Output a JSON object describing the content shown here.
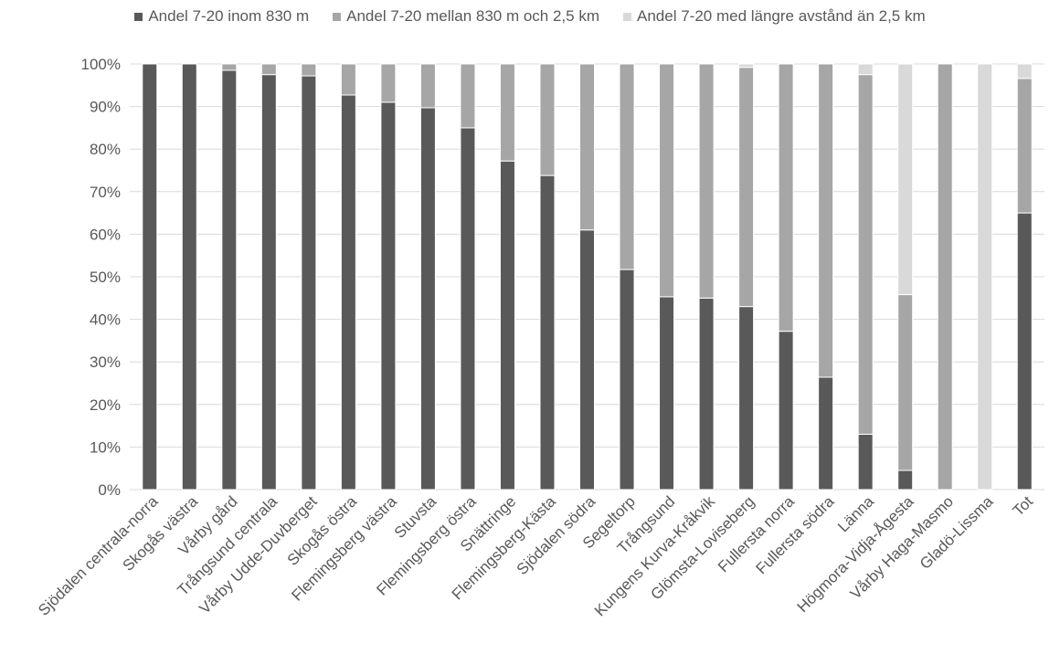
{
  "chart_data": {
    "type": "bar",
    "stacked": true,
    "title": "",
    "xlabel": "",
    "ylabel": "",
    "ylim": [
      0,
      100
    ],
    "y_ticks": [
      "0%",
      "10%",
      "20%",
      "30%",
      "40%",
      "50%",
      "60%",
      "70%",
      "80%",
      "90%",
      "100%"
    ],
    "grid": true,
    "legend_position": "top",
    "categories": [
      "Sjödalen centrala-norra",
      "Skogås västra",
      "Vårby gård",
      "Trångsund centrala",
      "Vårby Udde-Duvberget",
      "Skogås östra",
      "Flemingsberg västra",
      "Stuvsta",
      "Flemingsberg östra",
      "Snättringe",
      "Flemingsberg-Kästa",
      "Sjödalen södra",
      "Segeltorp",
      "Trångsund",
      "Kungens Kurva-Kråkvik",
      "Glömsta-Loviseberg",
      "Fullersta norra",
      "Fullersta södra",
      "Länna",
      "Högmora-Vidja-Ågesta",
      "Vårby Haga-Masmo",
      "Gladö-Lissma",
      "Tot"
    ],
    "series": [
      {
        "name": "Andel 7-20 inom 830 m",
        "color": "#595959",
        "values": [
          100,
          100,
          98.5,
          97.5,
          97.2,
          92.7,
          91,
          89.7,
          85,
          77.2,
          73.8,
          61,
          51.7,
          45.3,
          45,
          43,
          37.2,
          26.4,
          13,
          4.5,
          0,
          0,
          65
        ]
      },
      {
        "name": "Andel 7-20 mellan 830 m och 2,5 km",
        "color": "#a6a6a6",
        "values": [
          0,
          0,
          1.5,
          2.5,
          2.8,
          7.3,
          9,
          10.3,
          15,
          22.8,
          26.2,
          39,
          48.3,
          54.7,
          55,
          56.2,
          62.8,
          73.6,
          84.5,
          41.3,
          100,
          0,
          31.6
        ]
      },
      {
        "name": "Andel 7-20 med längre avstånd än 2,5 km",
        "color": "#d9d9d9",
        "values": [
          0,
          0,
          0,
          0,
          0,
          0,
          0,
          0,
          0,
          0,
          0,
          0,
          0,
          0,
          0,
          0.8,
          0,
          0,
          2.5,
          54.2,
          0,
          100,
          3.4
        ]
      }
    ]
  }
}
